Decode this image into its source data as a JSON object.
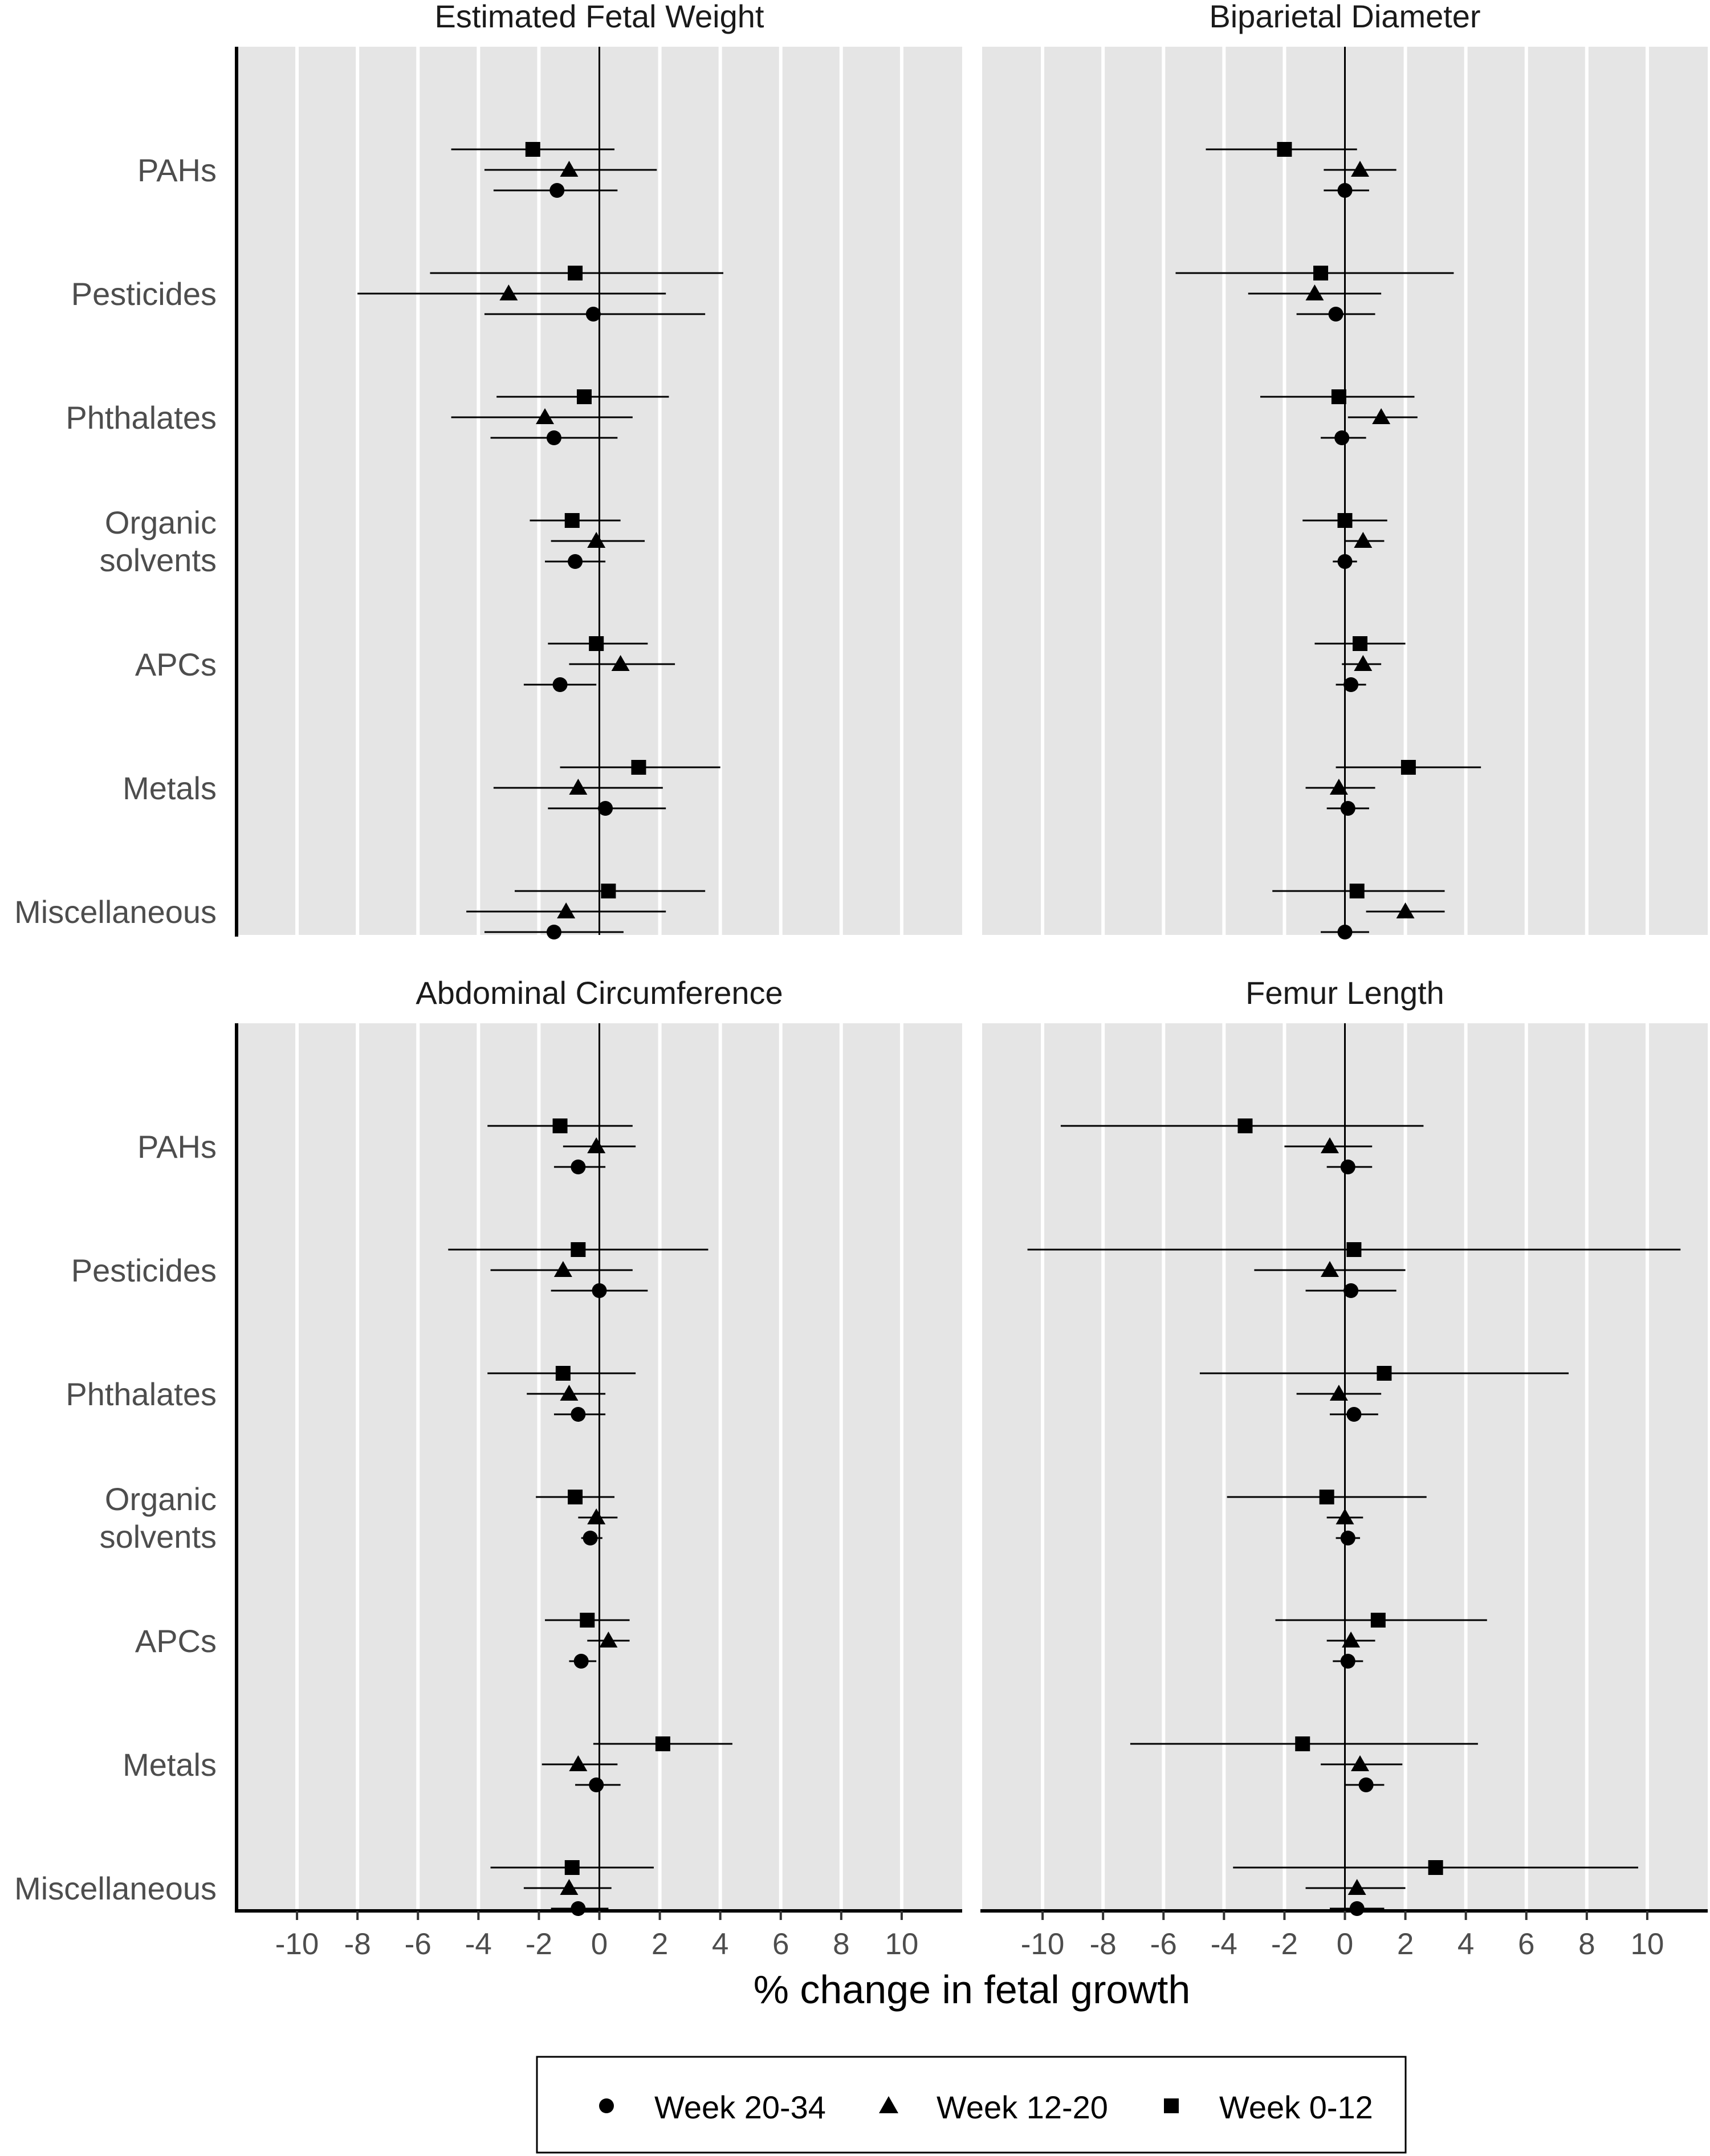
{
  "chart_data": {
    "type": "forest",
    "xlabel": "% change in fetal growth",
    "xlim": [
      -12,
      12
    ],
    "xticks": [
      -10,
      -8,
      -6,
      -4,
      -2,
      0,
      2,
      4,
      6,
      8,
      10
    ],
    "grid": true,
    "categories": [
      "PAHs",
      "Pesticides",
      "Phthalates",
      "Organic solvents",
      "APCs",
      "Metals",
      "Miscellaneous"
    ],
    "category_display": [
      [
        "PAHs"
      ],
      [
        "Pesticides"
      ],
      [
        "Phthalates"
      ],
      [
        "Organic",
        "solvents"
      ],
      [
        "APCs"
      ],
      [
        "Metals"
      ],
      [
        "Miscellaneous"
      ]
    ],
    "legend": {
      "placement": "bottom",
      "entries": [
        {
          "label": "Week 20-34",
          "shape": "circle"
        },
        {
          "label": "Week 12-20",
          "shape": "triangle"
        },
        {
          "label": "Week 0-12",
          "shape": "square"
        }
      ]
    },
    "panels": [
      {
        "title": "Estimated Fetal Weight",
        "series": [
          {
            "name": "Week 0-12",
            "shape": "square",
            "points": [
              {
                "est": -2.2,
                "lo": -4.9,
                "hi": 0.5
              },
              {
                "est": -0.8,
                "lo": -5.6,
                "hi": 4.1
              },
              {
                "est": -0.5,
                "lo": -3.4,
                "hi": 2.3
              },
              {
                "est": -0.9,
                "lo": -2.3,
                "hi": 0.7
              },
              {
                "est": -0.1,
                "lo": -1.7,
                "hi": 1.6
              },
              {
                "est": 1.3,
                "lo": -1.3,
                "hi": 4.0
              },
              {
                "est": 0.3,
                "lo": -2.8,
                "hi": 3.5
              }
            ]
          },
          {
            "name": "Week 12-20",
            "shape": "triangle",
            "points": [
              {
                "est": -1.0,
                "lo": -3.8,
                "hi": 1.9
              },
              {
                "est": -3.0,
                "lo": -8.0,
                "hi": 2.2
              },
              {
                "est": -1.8,
                "lo": -4.9,
                "hi": 1.1
              },
              {
                "est": -0.1,
                "lo": -1.6,
                "hi": 1.5
              },
              {
                "est": 0.7,
                "lo": -1.0,
                "hi": 2.5
              },
              {
                "est": -0.7,
                "lo": -3.5,
                "hi": 2.1
              },
              {
                "est": -1.1,
                "lo": -4.4,
                "hi": 2.2
              }
            ]
          },
          {
            "name": "Week 20-34",
            "shape": "circle",
            "points": [
              {
                "est": -1.4,
                "lo": -3.5,
                "hi": 0.6
              },
              {
                "est": -0.2,
                "lo": -3.8,
                "hi": 3.5
              },
              {
                "est": -1.5,
                "lo": -3.6,
                "hi": 0.6
              },
              {
                "est": -0.8,
                "lo": -1.8,
                "hi": 0.2
              },
              {
                "est": -1.3,
                "lo": -2.5,
                "hi": -0.1
              },
              {
                "est": 0.2,
                "lo": -1.7,
                "hi": 2.2
              },
              {
                "est": -1.5,
                "lo": -3.8,
                "hi": 0.8
              }
            ]
          }
        ]
      },
      {
        "title": "Biparietal Diameter",
        "series": [
          {
            "name": "Week 0-12",
            "shape": "square",
            "points": [
              {
                "est": -2.0,
                "lo": -4.6,
                "hi": 0.4
              },
              {
                "est": -0.8,
                "lo": -5.6,
                "hi": 3.6
              },
              {
                "est": -0.2,
                "lo": -2.8,
                "hi": 2.3
              },
              {
                "est": 0.0,
                "lo": -1.4,
                "hi": 1.4
              },
              {
                "est": 0.5,
                "lo": -1.0,
                "hi": 2.0
              },
              {
                "est": 2.1,
                "lo": -0.3,
                "hi": 4.5
              },
              {
                "est": 0.4,
                "lo": -2.4,
                "hi": 3.3
              }
            ]
          },
          {
            "name": "Week 12-20",
            "shape": "triangle",
            "points": [
              {
                "est": 0.5,
                "lo": -0.7,
                "hi": 1.7
              },
              {
                "est": -1.0,
                "lo": -3.2,
                "hi": 1.2
              },
              {
                "est": 1.2,
                "lo": 0.1,
                "hi": 2.4
              },
              {
                "est": 0.6,
                "lo": 0.0,
                "hi": 1.3
              },
              {
                "est": 0.6,
                "lo": -0.1,
                "hi": 1.2
              },
              {
                "est": -0.2,
                "lo": -1.3,
                "hi": 1.0
              },
              {
                "est": 2.0,
                "lo": 0.7,
                "hi": 3.3
              }
            ]
          },
          {
            "name": "Week 20-34",
            "shape": "circle",
            "points": [
              {
                "est": 0.0,
                "lo": -0.7,
                "hi": 0.8
              },
              {
                "est": -0.3,
                "lo": -1.6,
                "hi": 1.0
              },
              {
                "est": -0.1,
                "lo": -0.8,
                "hi": 0.7
              },
              {
                "est": 0.0,
                "lo": -0.4,
                "hi": 0.4
              },
              {
                "est": 0.2,
                "lo": -0.3,
                "hi": 0.7
              },
              {
                "est": 0.1,
                "lo": -0.6,
                "hi": 0.8
              },
              {
                "est": 0.0,
                "lo": -0.8,
                "hi": 0.8
              }
            ]
          }
        ]
      },
      {
        "title": "Abdominal Circumference",
        "series": [
          {
            "name": "Week 0-12",
            "shape": "square",
            "points": [
              {
                "est": -1.3,
                "lo": -3.7,
                "hi": 1.1
              },
              {
                "est": -0.7,
                "lo": -5.0,
                "hi": 3.6
              },
              {
                "est": -1.2,
                "lo": -3.7,
                "hi": 1.2
              },
              {
                "est": -0.8,
                "lo": -2.1,
                "hi": 0.5
              },
              {
                "est": -0.4,
                "lo": -1.8,
                "hi": 1.0
              },
              {
                "est": 2.1,
                "lo": -0.2,
                "hi": 4.4
              },
              {
                "est": -0.9,
                "lo": -3.6,
                "hi": 1.8
              }
            ]
          },
          {
            "name": "Week 12-20",
            "shape": "triangle",
            "points": [
              {
                "est": -0.1,
                "lo": -1.2,
                "hi": 1.2
              },
              {
                "est": -1.2,
                "lo": -3.6,
                "hi": 1.1
              },
              {
                "est": -1.0,
                "lo": -2.4,
                "hi": 0.2
              },
              {
                "est": -0.1,
                "lo": -0.7,
                "hi": 0.6
              },
              {
                "est": 0.3,
                "lo": -0.4,
                "hi": 1.0
              },
              {
                "est": -0.7,
                "lo": -1.9,
                "hi": 0.6
              },
              {
                "est": -1.0,
                "lo": -2.5,
                "hi": 0.4
              }
            ]
          },
          {
            "name": "Week 20-34",
            "shape": "circle",
            "points": [
              {
                "est": -0.7,
                "lo": -1.5,
                "hi": 0.2
              },
              {
                "est": 0.0,
                "lo": -1.6,
                "hi": 1.6
              },
              {
                "est": -0.7,
                "lo": -1.5,
                "hi": 0.2
              },
              {
                "est": -0.3,
                "lo": -0.6,
                "hi": 0.1
              },
              {
                "est": -0.6,
                "lo": -1.0,
                "hi": -0.1
              },
              {
                "est": -0.1,
                "lo": -0.8,
                "hi": 0.7
              },
              {
                "est": -0.7,
                "lo": -1.6,
                "hi": 0.3
              }
            ]
          }
        ]
      },
      {
        "title": "Femur Length",
        "series": [
          {
            "name": "Week 0-12",
            "shape": "square",
            "points": [
              {
                "est": -3.3,
                "lo": -9.4,
                "hi": 2.6
              },
              {
                "est": 0.3,
                "lo": -10.5,
                "hi": 11.1
              },
              {
                "est": 1.3,
                "lo": -4.8,
                "hi": 7.4
              },
              {
                "est": -0.6,
                "lo": -3.9,
                "hi": 2.7
              },
              {
                "est": 1.1,
                "lo": -2.3,
                "hi": 4.7
              },
              {
                "est": -1.4,
                "lo": -7.1,
                "hi": 4.4
              },
              {
                "est": 3.0,
                "lo": -3.7,
                "hi": 9.7
              }
            ]
          },
          {
            "name": "Week 12-20",
            "shape": "triangle",
            "points": [
              {
                "est": -0.5,
                "lo": -2.0,
                "hi": 0.9
              },
              {
                "est": -0.5,
                "lo": -3.0,
                "hi": 2.0
              },
              {
                "est": -0.2,
                "lo": -1.6,
                "hi": 1.2
              },
              {
                "est": 0.0,
                "lo": -0.6,
                "hi": 0.6
              },
              {
                "est": 0.2,
                "lo": -0.6,
                "hi": 1.0
              },
              {
                "est": 0.5,
                "lo": -0.8,
                "hi": 1.9
              },
              {
                "est": 0.4,
                "lo": -1.3,
                "hi": 2.0
              }
            ]
          },
          {
            "name": "Week 20-34",
            "shape": "circle",
            "points": [
              {
                "est": 0.1,
                "lo": -0.6,
                "hi": 0.9
              },
              {
                "est": 0.2,
                "lo": -1.3,
                "hi": 1.7
              },
              {
                "est": 0.3,
                "lo": -0.5,
                "hi": 1.1
              },
              {
                "est": 0.1,
                "lo": -0.3,
                "hi": 0.5
              },
              {
                "est": 0.1,
                "lo": -0.4,
                "hi": 0.6
              },
              {
                "est": 0.7,
                "lo": 0.0,
                "hi": 1.3
              },
              {
                "est": 0.4,
                "lo": -0.5,
                "hi": 1.3
              }
            ]
          }
        ]
      }
    ]
  }
}
